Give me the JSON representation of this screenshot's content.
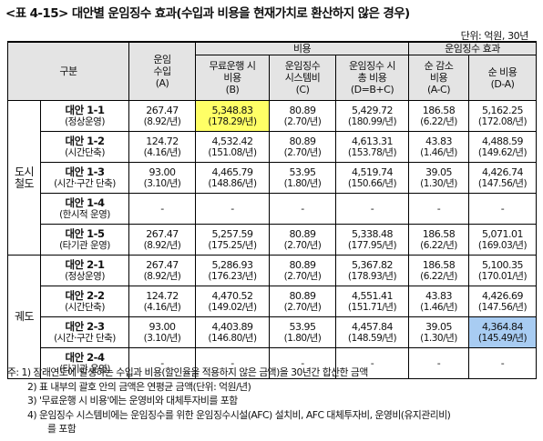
{
  "title": "<표 4-15> 대안별 운임징수 효과(수입과 비용을 현재가치로 환산하지 않은 경우)",
  "unit": "단위: 억원, 30년",
  "headers": {
    "category": "구분",
    "revenue_l1": "운임",
    "revenue_l2": "수입",
    "revenue_l3": "(A)",
    "cost_group": "비용",
    "effect_group": "운임징수 효과",
    "free_l1": "무료운행 시",
    "free_l2": "비용",
    "free_l3": "(B)",
    "sys_l1": "운임징수",
    "sys_l2": "시스템비",
    "sys_l3": "(C)",
    "total_l1": "운임징수 시",
    "total_l2": "총 비용",
    "total_l3": "(D=B+C)",
    "net_l1": "순 감소",
    "net_l2": "비용",
    "net_l3": "(A-C)",
    "netcost_l1": "순 비용",
    "netcost_l2": "(D-A)"
  },
  "sections": [
    {
      "name_l1": "도시",
      "name_l2": "철도",
      "rows": [
        {
          "name": "대안 1-1",
          "desc": "(정상운영)",
          "rev": "267.47",
          "rev_p": "(8.92/년)",
          "free": "5,348.83",
          "free_p": "(178.29/년)",
          "sys": "80.89",
          "sys_p": "(2.70/년)",
          "total": "5,429.72",
          "total_p": "(180.99/년)",
          "net": "186.58",
          "net_p": "(6.22/년)",
          "cost": "5,162.25",
          "cost_p": "(172.08/년)"
        },
        {
          "name": "대안 1-2",
          "desc": "(시간단축)",
          "rev": "124.72",
          "rev_p": "(4.16/년)",
          "free": "4,532.42",
          "free_p": "(151.08/년)",
          "sys": "80.89",
          "sys_p": "(2.70/년)",
          "total": "4,613.31",
          "total_p": "(153.78/년)",
          "net": "43.83",
          "net_p": "(1.46/년)",
          "cost": "4,488.59",
          "cost_p": "(149.62/년)"
        },
        {
          "name": "대안 1-3",
          "desc": "(시간·구간 단축)",
          "rev": "93.00",
          "rev_p": "(3.10/년)",
          "free": "4,465.79",
          "free_p": "(148.86/년)",
          "sys": "53.95",
          "sys_p": "(1.80/년)",
          "total": "4,519.74",
          "total_p": "(150.66/년)",
          "net": "39.05",
          "net_p": "(1.30/년)",
          "cost": "4,426.74",
          "cost_p": "(147.56/년)"
        },
        {
          "name": "대안 1-4",
          "desc": "(한시적 운영)",
          "rev": "-",
          "rev_p": "",
          "free": "-",
          "free_p": "",
          "sys": "-",
          "sys_p": "",
          "total": "-",
          "total_p": "",
          "net": "-",
          "net_p": "",
          "cost": "-",
          "cost_p": ""
        },
        {
          "name": "대안 1-5",
          "desc": "(타기관 운영)",
          "rev": "267.47",
          "rev_p": "(8.92/년)",
          "free": "5,257.59",
          "free_p": "(175.25/년)",
          "sys": "80.89",
          "sys_p": "(2.70/년)",
          "total": "5,338.48",
          "total_p": "(177.95/년)",
          "net": "186.58",
          "net_p": "(6.22/년)",
          "cost": "5,071.01",
          "cost_p": "(169.03/년)"
        }
      ]
    },
    {
      "name_l1": "궤도",
      "name_l2": "",
      "rows": [
        {
          "name": "대안 2-1",
          "desc": "(정상운영)",
          "rev": "267.47",
          "rev_p": "(8.92/년)",
          "free": "5,286.93",
          "free_p": "(176.23/년)",
          "sys": "80.89",
          "sys_p": "(2.70/년)",
          "total": "5,367.82",
          "total_p": "(178.93/년)",
          "net": "186.58",
          "net_p": "(6.22/년)",
          "cost": "5,100.35",
          "cost_p": "(170.01/년)"
        },
        {
          "name": "대안 2-2",
          "desc": "(시간단축)",
          "rev": "124.72",
          "rev_p": "(4.16/년)",
          "free": "4,470.52",
          "free_p": "(149.02/년)",
          "sys": "80.89",
          "sys_p": "(2.70/년)",
          "total": "4,551.41",
          "total_p": "(151.71/년)",
          "net": "43.83",
          "net_p": "(1.46/년)",
          "cost": "4,426.69",
          "cost_p": "(147.56/년)"
        },
        {
          "name": "대안 2-3",
          "desc": "(시간·구간 단축)",
          "rev": "93.00",
          "rev_p": "(3.10/년)",
          "free": "4,403.89",
          "free_p": "(146.80/년)",
          "sys": "53.95",
          "sys_p": "(1.80/년)",
          "total": "4,457.84",
          "total_p": "(148.59/년)",
          "net": "39.05",
          "net_p": "(1.30/년)",
          "cost": "4,364.84",
          "cost_p": "(145.49/년)"
        },
        {
          "name": "대안 2-4",
          "desc": "(타기관 운영)",
          "rev": "-",
          "rev_p": "",
          "free": "-",
          "free_p": "",
          "sys": "-",
          "sys_p": "",
          "total": "-",
          "total_p": "",
          "net": "-",
          "net_p": "",
          "cost": "-",
          "cost_p": ""
        }
      ]
    }
  ],
  "notes": {
    "n1": "주: 1) 장래연도에 발생하는 수입과 비용(할인율을 적용하지 않은 금액)을 30년간 합산한 금액",
    "n2": "2) 표 내부의 괄호 안의 금액은 연평균 금액(단위: 억원/년)",
    "n3": "3) '무료운행 시 비용'에는 운영비와 대체투자비를 포함",
    "n4a": "4) 운임징수 시스템비에는 운임징수를 위한 운임징수시설(AFC) 설치비, AFC 대체투자비, 운영비(유지관리비)",
    "n4b": "를 포함"
  },
  "highlight_colors": {
    "yellow": "#ffff66",
    "blue": "#a8ccf2"
  }
}
